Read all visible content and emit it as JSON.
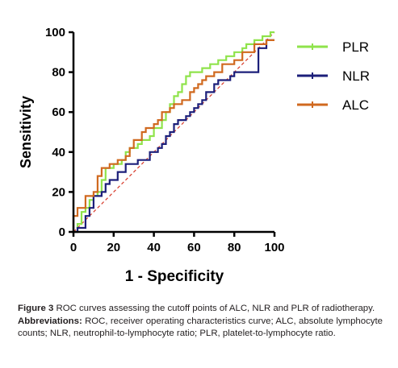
{
  "chart_data": {
    "type": "line",
    "title": "",
    "xlabel": "1 - Specificity",
    "ylabel": "Sensitivity",
    "xlim": [
      0,
      100
    ],
    "ylim": [
      0,
      100
    ],
    "xticks": [
      "0",
      "20",
      "40",
      "60",
      "80",
      "100"
    ],
    "yticks": [
      "0",
      "20",
      "40",
      "60",
      "80",
      "100"
    ],
    "legend_position": "right",
    "grid": false,
    "reference_line": {
      "x": [
        0,
        100
      ],
      "y": [
        0,
        100
      ],
      "color": "#d73a2a",
      "style": "dashed"
    },
    "series": [
      {
        "name": "PLR",
        "color": "#8fe34b",
        "x": [
          0,
          2,
          2,
          4,
          4,
          6,
          6,
          8,
          8,
          10,
          10,
          12,
          12,
          14,
          14,
          16,
          16,
          20,
          20,
          24,
          24,
          26,
          26,
          28,
          28,
          32,
          32,
          34,
          34,
          38,
          38,
          40,
          40,
          44,
          44,
          46,
          46,
          48,
          48,
          50,
          50,
          52,
          52,
          54,
          54,
          56,
          56,
          58,
          58,
          64,
          64,
          68,
          68,
          72,
          72,
          76,
          76,
          80,
          80,
          84,
          84,
          86,
          86,
          90,
          90,
          94,
          94,
          98,
          98,
          100
        ],
        "y": [
          0,
          0,
          4,
          4,
          10,
          10,
          12,
          12,
          16,
          16,
          18,
          18,
          20,
          20,
          26,
          26,
          32,
          32,
          34,
          34,
          36,
          36,
          40,
          40,
          42,
          42,
          44,
          44,
          46,
          46,
          48,
          48,
          52,
          52,
          56,
          56,
          60,
          60,
          64,
          64,
          68,
          68,
          70,
          70,
          74,
          74,
          78,
          78,
          80,
          80,
          82,
          82,
          84,
          84,
          86,
          86,
          88,
          88,
          90,
          90,
          92,
          92,
          94,
          94,
          96,
          96,
          98,
          98,
          100,
          100
        ]
      },
      {
        "name": "NLR",
        "color": "#1c1f7a",
        "x": [
          0,
          2,
          2,
          6,
          6,
          8,
          8,
          10,
          10,
          14,
          14,
          16,
          16,
          18,
          18,
          22,
          22,
          26,
          26,
          32,
          32,
          38,
          38,
          42,
          42,
          44,
          44,
          46,
          46,
          48,
          48,
          50,
          50,
          52,
          52,
          56,
          56,
          58,
          58,
          60,
          60,
          62,
          62,
          64,
          64,
          66,
          66,
          70,
          70,
          72,
          72,
          78,
          78,
          80,
          80,
          92,
          92,
          96,
          96,
          100
        ],
        "y": [
          0,
          0,
          2,
          2,
          8,
          8,
          12,
          12,
          18,
          18,
          20,
          20,
          24,
          24,
          26,
          26,
          30,
          30,
          34,
          34,
          36,
          36,
          40,
          40,
          42,
          42,
          44,
          44,
          48,
          48,
          50,
          50,
          54,
          54,
          56,
          56,
          58,
          58,
          60,
          60,
          62,
          62,
          64,
          64,
          66,
          66,
          70,
          70,
          74,
          74,
          76,
          76,
          78,
          78,
          80,
          80,
          92,
          92,
          96,
          96
        ]
      },
      {
        "name": "ALC",
        "color": "#d0691f",
        "x": [
          0,
          0,
          2,
          2,
          6,
          6,
          10,
          10,
          12,
          12,
          14,
          14,
          18,
          18,
          22,
          22,
          26,
          26,
          28,
          28,
          30,
          30,
          34,
          34,
          36,
          36,
          40,
          40,
          42,
          42,
          44,
          44,
          48,
          48,
          50,
          50,
          54,
          54,
          58,
          58,
          60,
          60,
          62,
          62,
          64,
          64,
          66,
          66,
          70,
          70,
          74,
          74,
          80,
          80,
          84,
          84,
          90,
          90,
          96,
          96,
          100
        ],
        "y": [
          0,
          8,
          8,
          12,
          12,
          18,
          18,
          20,
          20,
          28,
          28,
          32,
          32,
          34,
          34,
          36,
          36,
          38,
          38,
          42,
          42,
          46,
          46,
          50,
          50,
          52,
          52,
          54,
          54,
          56,
          56,
          60,
          60,
          62,
          62,
          64,
          64,
          66,
          66,
          70,
          70,
          72,
          72,
          74,
          74,
          76,
          76,
          78,
          78,
          80,
          80,
          84,
          84,
          86,
          86,
          90,
          90,
          94,
          94,
          96,
          96
        ]
      }
    ]
  },
  "caption": {
    "label": "Figure 3",
    "text": "ROC curves assessing the cutoff points of ALC, NLR and PLR of radiotherapy.",
    "abbrev_label": "Abbreviations:",
    "abbrev_text": "ROC, receiver operating characteristics curve; ALC, absolute lymphocyte counts; NLR, neutrophil-to-lymphocyte ratio; PLR, platelet-to-lymphocyte ratio."
  }
}
